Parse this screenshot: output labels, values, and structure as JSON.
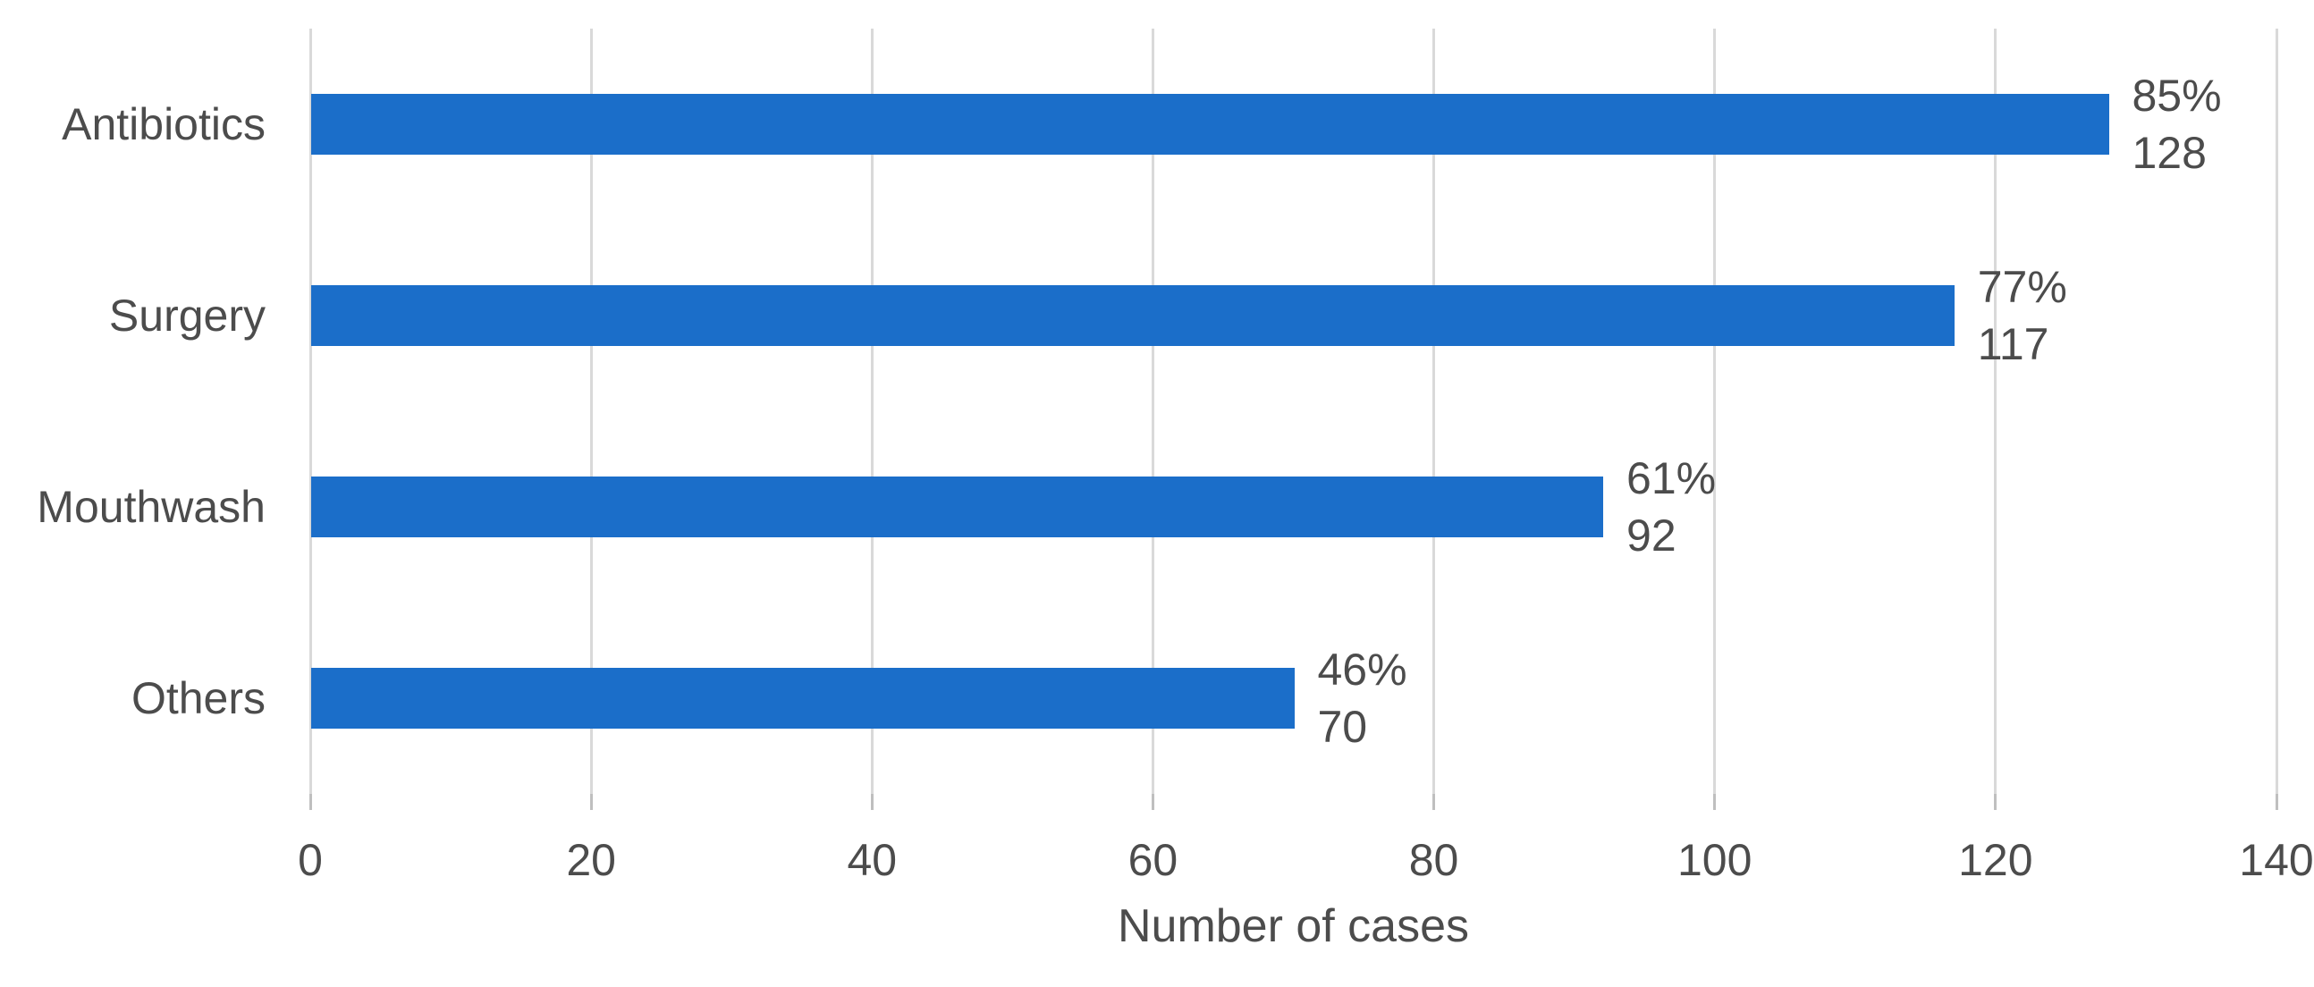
{
  "chart_data": {
    "type": "bar",
    "orientation": "horizontal",
    "categories": [
      "Antibiotics",
      "Surgery",
      "Mouthwash",
      "Others"
    ],
    "values": [
      128,
      117,
      92,
      70
    ],
    "percent_labels": [
      "85%",
      "77%",
      "61%",
      "46%"
    ],
    "count_labels": [
      "128",
      "117",
      "92",
      "70"
    ],
    "xlabel": "Number of cases",
    "xlim": [
      0,
      140
    ],
    "xticks": [
      0,
      20,
      40,
      60,
      80,
      100,
      120,
      140
    ],
    "grid": "vertical",
    "legend": "none",
    "colors": {
      "bar": "#1B6EC9",
      "gridline": "#D9D9D9",
      "tickmark": "#BFBFBF",
      "text": "#4C4C4C",
      "background": "#FFFFFF"
    }
  }
}
